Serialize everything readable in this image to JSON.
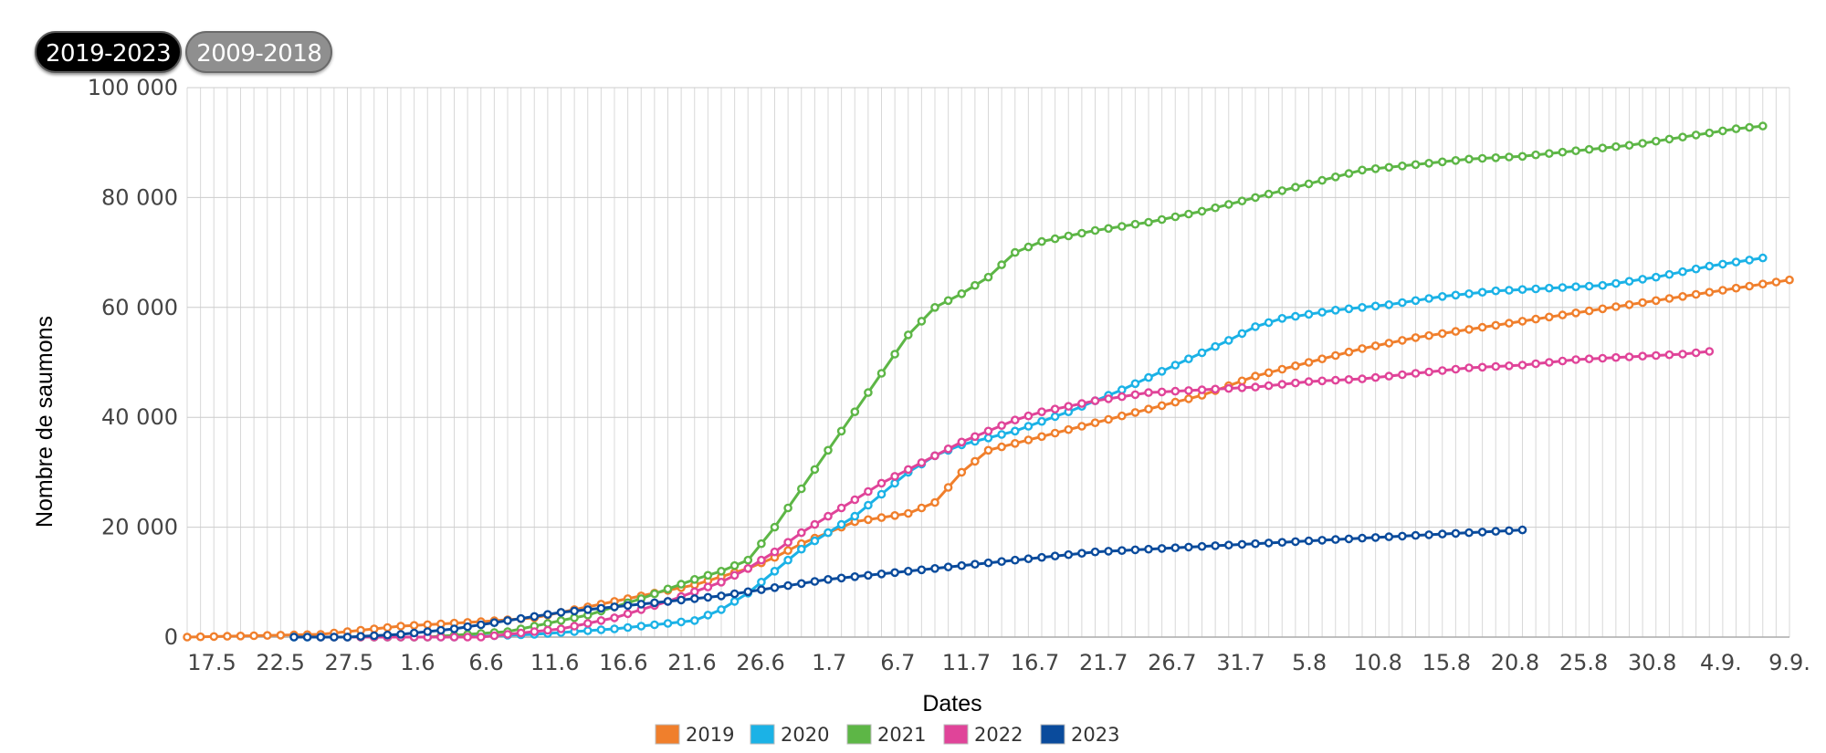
{
  "tabs": [
    {
      "label": "2019-2023",
      "active": true
    },
    {
      "label": "2009-2018",
      "active": false
    }
  ],
  "chart_data": {
    "type": "line",
    "title": "",
    "xlabel": "Dates",
    "ylabel": "Nombre de saumons",
    "ylim": [
      0,
      100000
    ],
    "yticks": [
      {
        "value": 0,
        "label": "0"
      },
      {
        "value": 20000,
        "label": "20 000"
      },
      {
        "value": 40000,
        "label": "40 000"
      },
      {
        "value": 60000,
        "label": "60 000"
      },
      {
        "value": 80000,
        "label": "80 000"
      },
      {
        "value": 100000,
        "label": "100 000"
      }
    ],
    "xticks": [
      "17.5",
      "22.5",
      "27.5",
      "1.6",
      "6.6",
      "11.6",
      "16.6",
      "21.6",
      "26.6",
      "1.7",
      "6.7",
      "11.7",
      "16.7",
      "21.7",
      "26.7",
      "31.7",
      "5.8",
      "10.8",
      "15.8",
      "20.8",
      "25.8",
      "30.8",
      "4.9.",
      "9.9."
    ],
    "grid": true,
    "legend_position": "bottom-center",
    "series": [
      {
        "name": "2019",
        "color": "#f07f2c",
        "start_day": 0,
        "end_day": 120,
        "points": [
          [
            0,
            0
          ],
          [
            10,
            500
          ],
          [
            16,
            2000
          ],
          [
            22,
            2800
          ],
          [
            26,
            3500
          ],
          [
            30,
            5500
          ],
          [
            34,
            7500
          ],
          [
            38,
            9500
          ],
          [
            40,
            11000
          ],
          [
            42,
            12500
          ],
          [
            44,
            14500
          ],
          [
            46,
            17000
          ],
          [
            48,
            19000
          ],
          [
            50,
            21000
          ],
          [
            54,
            22500
          ],
          [
            56,
            24500
          ],
          [
            58,
            30000
          ],
          [
            60,
            34000
          ],
          [
            64,
            36500
          ],
          [
            68,
            39000
          ],
          [
            72,
            41500
          ],
          [
            76,
            44000
          ],
          [
            80,
            47500
          ],
          [
            84,
            50000
          ],
          [
            88,
            52500
          ],
          [
            92,
            54500
          ],
          [
            96,
            56000
          ],
          [
            100,
            57500
          ],
          [
            104,
            59000
          ],
          [
            108,
            60500
          ],
          [
            112,
            62000
          ],
          [
            116,
            63500
          ],
          [
            120,
            65000
          ]
        ]
      },
      {
        "name": "2020",
        "color": "#1bb2e6",
        "start_day": 8,
        "end_day": 118,
        "points": [
          [
            8,
            0
          ],
          [
            20,
            0
          ],
          [
            26,
            500
          ],
          [
            32,
            1500
          ],
          [
            38,
            3000
          ],
          [
            40,
            5000
          ],
          [
            42,
            8000
          ],
          [
            44,
            12000
          ],
          [
            46,
            16000
          ],
          [
            48,
            19000
          ],
          [
            50,
            22000
          ],
          [
            52,
            26000
          ],
          [
            54,
            30000
          ],
          [
            56,
            33000
          ],
          [
            58,
            35000
          ],
          [
            62,
            37500
          ],
          [
            66,
            41000
          ],
          [
            70,
            45000
          ],
          [
            74,
            49500
          ],
          [
            78,
            54000
          ],
          [
            80,
            56500
          ],
          [
            82,
            58000
          ],
          [
            86,
            59500
          ],
          [
            90,
            60500
          ],
          [
            94,
            62000
          ],
          [
            98,
            63000
          ],
          [
            102,
            63500
          ],
          [
            106,
            64000
          ],
          [
            110,
            65500
          ],
          [
            114,
            67500
          ],
          [
            118,
            69000
          ]
        ]
      },
      {
        "name": "2021",
        "color": "#5db646",
        "start_day": 10,
        "end_day": 118,
        "points": [
          [
            10,
            0
          ],
          [
            18,
            0
          ],
          [
            24,
            1000
          ],
          [
            30,
            4000
          ],
          [
            34,
            7000
          ],
          [
            38,
            10500
          ],
          [
            40,
            12000
          ],
          [
            42,
            14000
          ],
          [
            44,
            20000
          ],
          [
            46,
            27000
          ],
          [
            48,
            34000
          ],
          [
            50,
            41000
          ],
          [
            52,
            48000
          ],
          [
            54,
            55000
          ],
          [
            56,
            60000
          ],
          [
            58,
            62500
          ],
          [
            60,
            65500
          ],
          [
            62,
            70000
          ],
          [
            64,
            72000
          ],
          [
            68,
            74000
          ],
          [
            72,
            75500
          ],
          [
            76,
            77500
          ],
          [
            80,
            80000
          ],
          [
            84,
            82500
          ],
          [
            88,
            85000
          ],
          [
            92,
            86000
          ],
          [
            96,
            87000
          ],
          [
            100,
            87500
          ],
          [
            104,
            88500
          ],
          [
            108,
            89500
          ],
          [
            112,
            91000
          ],
          [
            116,
            92500
          ],
          [
            118,
            93000
          ]
        ]
      },
      {
        "name": "2022",
        "color": "#e04499",
        "start_day": 10,
        "end_day": 114,
        "points": [
          [
            10,
            0
          ],
          [
            22,
            0
          ],
          [
            28,
            1500
          ],
          [
            32,
            3500
          ],
          [
            36,
            6500
          ],
          [
            40,
            10000
          ],
          [
            42,
            12500
          ],
          [
            44,
            15500
          ],
          [
            46,
            19000
          ],
          [
            48,
            22000
          ],
          [
            50,
            25000
          ],
          [
            52,
            28000
          ],
          [
            54,
            30500
          ],
          [
            56,
            33000
          ],
          [
            58,
            35500
          ],
          [
            60,
            37500
          ],
          [
            62,
            39500
          ],
          [
            64,
            41000
          ],
          [
            68,
            43000
          ],
          [
            72,
            44500
          ],
          [
            76,
            45000
          ],
          [
            80,
            45500
          ],
          [
            84,
            46500
          ],
          [
            88,
            47000
          ],
          [
            92,
            48000
          ],
          [
            96,
            49000
          ],
          [
            100,
            49500
          ],
          [
            104,
            50500
          ],
          [
            108,
            51000
          ],
          [
            112,
            51500
          ],
          [
            114,
            52000
          ]
        ]
      },
      {
        "name": "2023",
        "color": "#0a4b9c",
        "start_day": 8,
        "end_day": 100,
        "points": [
          [
            8,
            0
          ],
          [
            12,
            0
          ],
          [
            16,
            500
          ],
          [
            20,
            1500
          ],
          [
            24,
            3000
          ],
          [
            28,
            4500
          ],
          [
            32,
            5500
          ],
          [
            36,
            6500
          ],
          [
            40,
            7500
          ],
          [
            44,
            9000
          ],
          [
            48,
            10500
          ],
          [
            52,
            11500
          ],
          [
            56,
            12500
          ],
          [
            60,
            13500
          ],
          [
            64,
            14500
          ],
          [
            68,
            15500
          ],
          [
            72,
            16000
          ],
          [
            76,
            16500
          ],
          [
            80,
            17000
          ],
          [
            84,
            17500
          ],
          [
            88,
            18000
          ],
          [
            92,
            18500
          ],
          [
            96,
            19000
          ],
          [
            100,
            19500
          ]
        ]
      }
    ]
  }
}
